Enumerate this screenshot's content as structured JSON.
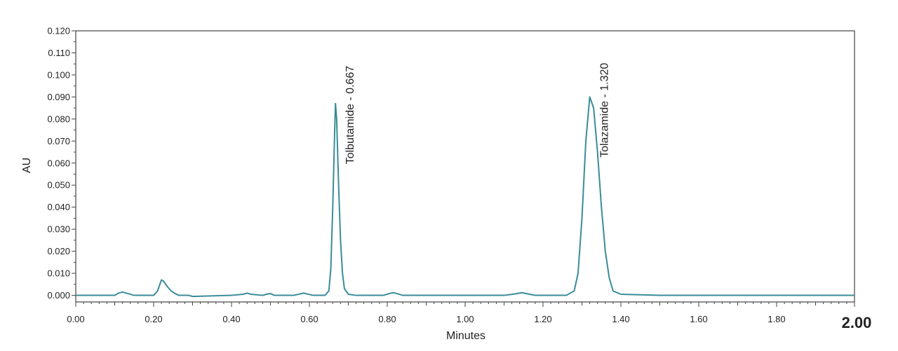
{
  "chart_data": {
    "type": "line",
    "title": "",
    "xlabel": "Minutes",
    "ylabel": "AU",
    "xlim": [
      0.0,
      2.0
    ],
    "ylim": [
      -0.003,
      0.12
    ],
    "x_ticks": [
      "0.00",
      "0.20",
      "0.40",
      "0.60",
      "0.80",
      "1.00",
      "1.20",
      "1.40",
      "1.60",
      "1.80"
    ],
    "x_tick_values": [
      0.0,
      0.2,
      0.4,
      0.6,
      0.8,
      1.0,
      1.2,
      1.4,
      1.6,
      1.8
    ],
    "y_ticks": [
      "0.000",
      "0.010",
      "0.020",
      "0.030",
      "0.040",
      "0.050",
      "0.060",
      "0.070",
      "0.080",
      "0.090",
      "0.100",
      "0.110",
      "0.120"
    ],
    "y_tick_values": [
      0.0,
      0.01,
      0.02,
      0.03,
      0.04,
      0.05,
      0.06,
      0.07,
      0.08,
      0.09,
      0.1,
      0.11,
      0.12
    ],
    "corner_value": "2.00",
    "grid": false,
    "line_color": "#3b8b9a",
    "series": [
      {
        "x": [
          0.0,
          0.1,
          0.11,
          0.12,
          0.13,
          0.15,
          0.2,
          0.21,
          0.22,
          0.225,
          0.235,
          0.245,
          0.255,
          0.265,
          0.29,
          0.3,
          0.4,
          0.43,
          0.44,
          0.45,
          0.48,
          0.49,
          0.5,
          0.51,
          0.56,
          0.575,
          0.585,
          0.595,
          0.61,
          0.64,
          0.65,
          0.655,
          0.66,
          0.665,
          0.667,
          0.67,
          0.675,
          0.68,
          0.685,
          0.69,
          0.7,
          0.72,
          0.79,
          0.805,
          0.815,
          0.825,
          0.84,
          0.9,
          1.1,
          1.13,
          1.145,
          1.16,
          1.18,
          1.26,
          1.28,
          1.29,
          1.3,
          1.31,
          1.32,
          1.33,
          1.34,
          1.35,
          1.36,
          1.37,
          1.38,
          1.4,
          1.5,
          2.0
        ],
        "y": [
          0.0,
          0.0,
          0.001,
          0.0015,
          0.001,
          0.0,
          0.0,
          0.002,
          0.007,
          0.0065,
          0.004,
          0.002,
          0.0008,
          0.0,
          0.0,
          -0.0005,
          0.0,
          0.0005,
          0.001,
          0.0005,
          0.0,
          0.0005,
          0.0008,
          0.0,
          0.0,
          0.0006,
          0.001,
          0.0006,
          0.0,
          0.0,
          0.002,
          0.012,
          0.04,
          0.075,
          0.087,
          0.08,
          0.05,
          0.025,
          0.01,
          0.003,
          0.0005,
          0.0,
          0.0,
          0.0008,
          0.0012,
          0.0008,
          0.0,
          0.0,
          0.0,
          0.0007,
          0.0012,
          0.0007,
          0.0,
          0.0,
          0.002,
          0.01,
          0.035,
          0.07,
          0.09,
          0.085,
          0.065,
          0.04,
          0.02,
          0.008,
          0.002,
          0.0005,
          0.0,
          0.0
        ]
      }
    ],
    "annotations": [
      {
        "text": "Tolbutamide - 0.667",
        "x": 0.667,
        "y": 0.0595
      },
      {
        "text": "Tolazamide - 1.320",
        "x": 1.32,
        "y": 0.0625
      }
    ]
  }
}
